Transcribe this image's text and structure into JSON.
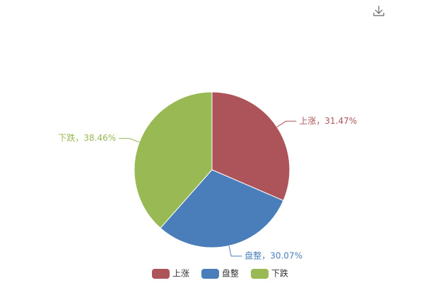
{
  "chart_data": {
    "type": "pie",
    "categories": [
      "上涨",
      "盘整",
      "下跌"
    ],
    "values": [
      31.47,
      30.07,
      38.46
    ],
    "value_labels": [
      "上涨，31.47%",
      "盘整，30.07%",
      "下跌，38.46%"
    ],
    "colors": [
      "#ad545a",
      "#4a7ebb",
      "#98b954"
    ],
    "legend": "bottom"
  }
}
